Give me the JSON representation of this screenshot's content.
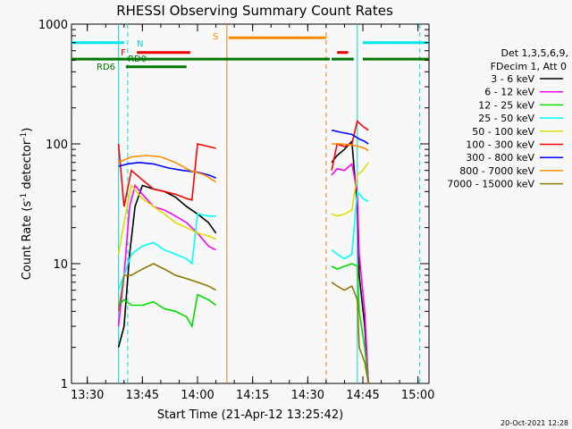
{
  "chart_data": {
    "type": "line",
    "title": "RHESSI Observing Summary Count Rates",
    "xlabel": "Start Time (21-Apr-12 13:25:42)",
    "ylabel_main": "Count Rate (s",
    "ylabel_sup1": "-1",
    "ylabel_mid": " detector",
    "ylabel_sup2": "-1",
    "ylabel_end": ")",
    "y_scale": "log",
    "ylim": [
      1,
      1000
    ],
    "xlim": [
      "13:25:42",
      "15:03:00"
    ],
    "x_ticks": [
      "13:30",
      "13:45",
      "14:00",
      "14:15",
      "14:30",
      "14:45",
      "15:00"
    ],
    "y_ticks": [
      "1",
      "10",
      "100",
      "1000"
    ],
    "grid": false,
    "legend_header": [
      "Det 1,3,5,6,9,",
      "FDecim 1, Att 0"
    ],
    "legend_placement": "right",
    "timestamp": "20-Oct-2021 12:28",
    "flags": {
      "labels": {
        "N": "N",
        "F": "F",
        "RD0": "RD0",
        "RD6": "RD6",
        "S": "S"
      },
      "bars": [
        {
          "name": "N",
          "color": "#00e8e8",
          "y": 700,
          "segments": [
            [
              "13:25:42",
              "13:40:00"
            ],
            [
              "14:45:00",
              "15:03:00"
            ]
          ]
        },
        {
          "name": "F",
          "color": "#ee0000",
          "y": 580,
          "segments": [
            [
              "13:43:30",
              "13:58:00"
            ],
            [
              "14:38:00",
              "14:41:00"
            ]
          ]
        },
        {
          "name": "S",
          "color": "#ff8c00",
          "y": 770,
          "segments": [
            [
              "14:08:30",
              "14:35:00"
            ]
          ]
        },
        {
          "name": "RD0",
          "color": "#007700",
          "y": 510,
          "segments": [
            [
              "13:25:42",
              "14:36:00"
            ],
            [
              "14:36:30",
              "14:42:30"
            ],
            [
              "14:45:00",
              "15:03:00"
            ]
          ]
        },
        {
          "name": "RD6",
          "color": "#007700",
          "y": 440,
          "segments": [
            [
              "13:40:30",
              "13:57:00"
            ]
          ]
        }
      ],
      "vlines": [
        {
          "time": "13:38:30",
          "color": "#00d8d8",
          "dash": false
        },
        {
          "time": "13:41:00",
          "color": "#00d8d8",
          "dash": true
        },
        {
          "time": "14:08:00",
          "color": "#e08020",
          "dash": false
        },
        {
          "time": "14:35:00",
          "color": "#e08020",
          "dash": true
        },
        {
          "time": "14:43:30",
          "color": "#00d8d8",
          "dash": false
        },
        {
          "time": "15:00:30",
          "color": "#00d8d8",
          "dash": true
        }
      ]
    },
    "series": [
      {
        "name": "3 - 6 keV",
        "color": "#000000",
        "segments": [
          [
            [
              "13:38:30",
              2.0
            ],
            [
              "13:40:00",
              3.0
            ],
            [
              "13:41:30",
              12
            ],
            [
              "13:43:00",
              30
            ],
            [
              "13:45:00",
              45
            ],
            [
              "13:48:00",
              42
            ],
            [
              "13:51:00",
              40
            ],
            [
              "13:54:00",
              36
            ],
            [
              "13:57:00",
              30
            ],
            [
              "14:00:00",
              26
            ],
            [
              "14:03:00",
              22
            ],
            [
              "14:05:00",
              18
            ]
          ],
          [
            [
              "14:36:30",
              70
            ],
            [
              "14:38:00",
              80
            ],
            [
              "14:40:00",
              90
            ],
            [
              "14:42:00",
              105
            ],
            [
              "14:43:30",
              30
            ],
            [
              "14:44:00",
              8
            ],
            [
              "14:45:30",
              3
            ],
            [
              "14:46:30",
              1
            ]
          ]
        ]
      },
      {
        "name": "6 - 12 keV",
        "color": "#ff00ff",
        "segments": [
          [
            [
              "13:38:30",
              3.0
            ],
            [
              "13:40:00",
              8
            ],
            [
              "13:41:30",
              30
            ],
            [
              "13:43:00",
              45
            ],
            [
              "13:45:00",
              38
            ],
            [
              "13:48:00",
              30
            ],
            [
              "13:51:00",
              28
            ],
            [
              "13:54:00",
              25
            ],
            [
              "13:57:00",
              22
            ],
            [
              "14:00:00",
              18
            ],
            [
              "14:03:00",
              14
            ],
            [
              "14:05:00",
              13
            ]
          ],
          [
            [
              "14:36:30",
              55
            ],
            [
              "14:38:00",
              62
            ],
            [
              "14:40:00",
              60
            ],
            [
              "14:42:00",
              68
            ],
            [
              "14:43:30",
              40
            ],
            [
              "14:44:00",
              12
            ],
            [
              "14:45:30",
              4
            ],
            [
              "14:46:30",
              1
            ]
          ]
        ]
      },
      {
        "name": "12 - 25 keV",
        "color": "#00dd00",
        "segments": [
          [
            [
              "13:38:30",
              4.5
            ],
            [
              "13:40:00",
              5
            ],
            [
              "13:42:00",
              4.5
            ],
            [
              "13:45:00",
              4.5
            ],
            [
              "13:48:00",
              4.8
            ],
            [
              "13:51:00",
              4.2
            ],
            [
              "13:54:00",
              4.0
            ],
            [
              "13:57:00",
              3.6
            ],
            [
              "13:58:30",
              3.0
            ],
            [
              "14:00:00",
              5.5
            ],
            [
              "14:03:00",
              5.0
            ],
            [
              "14:05:00",
              4.5
            ]
          ],
          [
            [
              "14:36:30",
              9.5
            ],
            [
              "14:38:00",
              9.0
            ],
            [
              "14:40:00",
              9.5
            ],
            [
              "14:42:00",
              10
            ],
            [
              "14:43:30",
              9.5
            ],
            [
              "14:44:00",
              4
            ],
            [
              "14:45:30",
              2
            ],
            [
              "14:46:30",
              1
            ]
          ]
        ]
      },
      {
        "name": "25 - 50 keV",
        "color": "#00ffff",
        "segments": [
          [
            [
              "13:38:30",
              6
            ],
            [
              "13:40:00",
              8
            ],
            [
              "13:42:00",
              12
            ],
            [
              "13:45:00",
              14
            ],
            [
              "13:48:00",
              15
            ],
            [
              "13:51:00",
              13
            ],
            [
              "13:54:00",
              12
            ],
            [
              "13:57:00",
              11
            ],
            [
              "13:58:30",
              10
            ],
            [
              "14:00:00",
              26
            ],
            [
              "14:03:00",
              25
            ],
            [
              "14:05:00",
              25
            ]
          ],
          [
            [
              "14:36:30",
              13
            ],
            [
              "14:38:00",
              12
            ],
            [
              "14:40:00",
              11
            ],
            [
              "14:42:00",
              12
            ],
            [
              "14:43:30",
              40
            ],
            [
              "14:45:00",
              35
            ],
            [
              "14:46:30",
              33
            ]
          ]
        ]
      },
      {
        "name": "50 - 100 keV",
        "color": "#dddd00",
        "segments": [
          [
            [
              "13:38:30",
              12
            ],
            [
              "13:40:00",
              22
            ],
            [
              "13:42:00",
              45
            ],
            [
              "13:45:00",
              35
            ],
            [
              "13:48:00",
              30
            ],
            [
              "13:51:00",
              26
            ],
            [
              "13:54:00",
              22
            ],
            [
              "13:57:00",
              20
            ],
            [
              "14:00:00",
              18
            ],
            [
              "14:03:00",
              17
            ],
            [
              "14:05:00",
              16
            ]
          ],
          [
            [
              "14:36:30",
              26
            ],
            [
              "14:38:00",
              25
            ],
            [
              "14:40:00",
              26
            ],
            [
              "14:42:00",
              28
            ],
            [
              "14:43:30",
              55
            ],
            [
              "14:45:00",
              60
            ],
            [
              "14:46:30",
              70
            ]
          ]
        ]
      },
      {
        "name": "100 - 300 keV",
        "color": "#ff0000",
        "segments": [
          [
            [
              "13:38:30",
              100
            ],
            [
              "13:40:00",
              30
            ],
            [
              "13:42:00",
              60
            ],
            [
              "13:45:00",
              50
            ],
            [
              "13:48:00",
              42
            ],
            [
              "13:51:00",
              40
            ],
            [
              "13:54:00",
              38
            ],
            [
              "13:57:00",
              35
            ],
            [
              "13:58:30",
              34
            ],
            [
              "14:00:00",
              100
            ],
            [
              "14:03:00",
              95
            ],
            [
              "14:05:00",
              92
            ]
          ],
          [
            [
              "14:36:30",
              60
            ],
            [
              "14:38:00",
              100
            ],
            [
              "14:40:00",
              95
            ],
            [
              "14:42:00",
              100
            ],
            [
              "14:43:30",
              155
            ],
            [
              "14:45:00",
              140
            ],
            [
              "14:46:30",
              130
            ]
          ]
        ]
      },
      {
        "name": "300 - 800 keV",
        "color": "#0000ff",
        "segments": [
          [
            [
              "13:38:30",
              65
            ],
            [
              "13:41:00",
              68
            ],
            [
              "13:44:00",
              70
            ],
            [
              "13:48:00",
              68
            ],
            [
              "13:52:00",
              63
            ],
            [
              "13:56:00",
              60
            ],
            [
              "14:00:00",
              58
            ],
            [
              "14:03:00",
              55
            ],
            [
              "14:05:00",
              52
            ]
          ],
          [
            [
              "14:36:30",
              130
            ],
            [
              "14:39:00",
              125
            ],
            [
              "14:42:00",
              120
            ],
            [
              "14:44:00",
              110
            ],
            [
              "14:45:30",
              105
            ],
            [
              "14:46:30",
              100
            ]
          ]
        ]
      },
      {
        "name": "800 - 7000 keV",
        "color": "#ff8c00",
        "segments": [
          [
            [
              "13:38:30",
              70
            ],
            [
              "13:42:00",
              78
            ],
            [
              "13:46:00",
              80
            ],
            [
              "13:50:00",
              78
            ],
            [
              "13:54:00",
              70
            ],
            [
              "13:58:00",
              60
            ],
            [
              "14:02:00",
              55
            ],
            [
              "14:05:00",
              48
            ]
          ],
          [
            [
              "14:36:30",
              100
            ],
            [
              "14:39:00",
              100
            ],
            [
              "14:42:00",
              98
            ],
            [
              "14:44:00",
              95
            ],
            [
              "14:45:30",
              92
            ],
            [
              "14:46:30",
              88
            ]
          ]
        ]
      },
      {
        "name": "7000 - 15000 keV",
        "color": "#8b7a00",
        "segments": [
          [
            [
              "13:38:30",
              4
            ],
            [
              "13:40:00",
              8
            ],
            [
              "13:42:00",
              8
            ],
            [
              "13:45:00",
              9
            ],
            [
              "13:48:00",
              10
            ],
            [
              "13:51:00",
              9
            ],
            [
              "13:54:00",
              8
            ],
            [
              "13:57:00",
              7.5
            ],
            [
              "14:00:00",
              7
            ],
            [
              "14:03:00",
              6.5
            ],
            [
              "14:05:00",
              6
            ]
          ],
          [
            [
              "14:36:30",
              7
            ],
            [
              "14:38:00",
              6.5
            ],
            [
              "14:40:00",
              6
            ],
            [
              "14:42:00",
              6.5
            ],
            [
              "14:43:30",
              5
            ],
            [
              "14:44:00",
              2
            ],
            [
              "14:45:30",
              1.5
            ],
            [
              "14:46:30",
              1
            ]
          ]
        ]
      }
    ]
  }
}
